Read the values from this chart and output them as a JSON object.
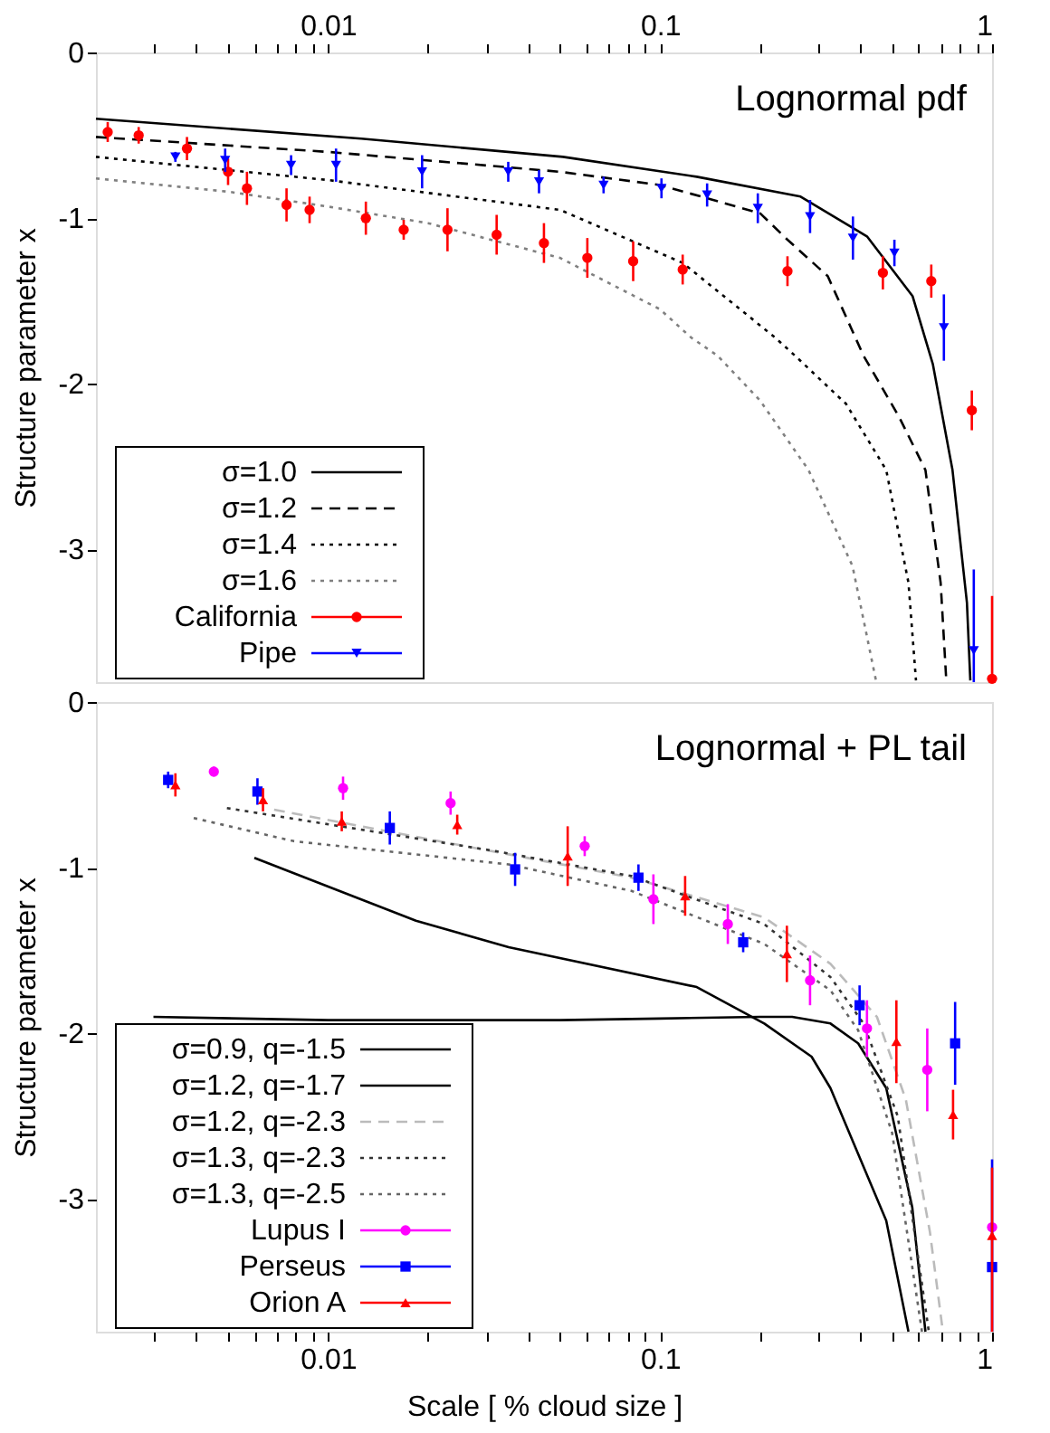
{
  "chart_data": [
    {
      "type": "line",
      "title": "Lognormal pdf",
      "ylabel": "Structure parameter x",
      "log": "x",
      "xlim": [
        0.002,
        1
      ],
      "xticks": [
        {
          "value": 0.003,
          "label": null
        },
        {
          "value": 0.004,
          "label": null
        },
        {
          "value": 0.005,
          "label": null
        },
        {
          "value": 0.006,
          "label": null
        },
        {
          "value": 0.007,
          "label": null
        },
        {
          "value": 0.008,
          "label": null
        },
        {
          "value": 0.009,
          "label": null
        },
        0.01,
        {
          "value": 0.02,
          "label": null
        },
        {
          "value": 0.03,
          "label": null
        },
        {
          "value": 0.04,
          "label": null
        },
        {
          "value": 0.05,
          "label": null
        },
        {
          "value": 0.06,
          "label": null
        },
        {
          "value": 0.07,
          "label": null
        },
        {
          "value": 0.08,
          "label": null
        },
        {
          "value": 0.09,
          "label": null
        },
        0.1,
        {
          "value": 0.2,
          "label": null
        },
        {
          "value": 0.3,
          "label": null
        },
        {
          "value": 0.4,
          "label": null
        },
        {
          "value": 0.5,
          "label": null
        },
        {
          "value": 0.6,
          "label": null
        },
        {
          "value": 0.7,
          "label": null
        },
        {
          "value": 0.8,
          "label": null
        },
        {
          "value": 0.9,
          "label": null
        },
        1
      ],
      "ylim": [
        -3.8,
        0
      ],
      "yticks": [
        0,
        -1,
        -2,
        -3
      ],
      "grid": false,
      "legend": "bottom left",
      "series": [
        {
          "name": "σ=1.0",
          "color": "#000000",
          "line_style": "solid",
          "marker": "none",
          "x": [
            0.002,
            0.0126,
            0.051,
            0.129,
            0.265,
            0.42,
            0.576,
            0.663,
            0.76,
            0.84,
            0.86
          ],
          "values": [
            -0.4,
            -0.52,
            -0.63,
            -0.75,
            -0.87,
            -1.11,
            -1.47,
            -1.88,
            -2.52,
            -3.32,
            -3.79
          ]
        },
        {
          "name": "σ=1.2",
          "color": "#000000",
          "line_style": "dashed",
          "marker": "none",
          "x": [
            0.002,
            0.01,
            0.05,
            0.1,
            0.2,
            0.242,
            0.32,
            0.41,
            0.525,
            0.63,
            0.7,
            0.728
          ],
          "values": [
            -0.51,
            -0.6,
            -0.72,
            -0.8,
            -0.97,
            -1.13,
            -1.35,
            -1.83,
            -2.2,
            -2.52,
            -3.2,
            -3.79
          ]
        },
        {
          "name": "σ=1.4",
          "color": "#000000",
          "line_style": "dotted",
          "marker": "none",
          "x": [
            0.002,
            0.01,
            0.05,
            0.117,
            0.222,
            0.255,
            0.363,
            0.48,
            0.56,
            0.59
          ],
          "values": [
            -0.63,
            -0.77,
            -0.95,
            -1.27,
            -1.72,
            -1.83,
            -2.12,
            -2.52,
            -3.2,
            -3.79
          ]
        },
        {
          "name": "σ=1.6",
          "color": "#808080",
          "line_style": "dotted",
          "marker": "none",
          "x": [
            0.002,
            0.005,
            0.01,
            0.02,
            0.05,
            0.1,
            0.124,
            0.149,
            0.2,
            0.28,
            0.38,
            0.447
          ],
          "values": [
            -0.76,
            -0.84,
            -0.93,
            -1.03,
            -1.24,
            -1.55,
            -1.72,
            -1.83,
            -2.1,
            -2.52,
            -3.1,
            -3.79
          ]
        },
        {
          "name": "California",
          "type": "scatter",
          "color": "#ff0000",
          "marker": "circle",
          "x": [
            0.00217,
            0.00269,
            0.00376,
            0.005,
            0.0057,
            0.0075,
            0.0088,
            0.013,
            0.0169,
            0.0229,
            0.0322,
            0.0447,
            0.0604,
            0.083,
            0.117,
            0.242,
            0.469,
            0.656,
            0.869,
            1.0
          ],
          "values": [
            -0.48,
            -0.5,
            -0.58,
            -0.72,
            -0.82,
            -0.92,
            -0.95,
            -1.0,
            -1.07,
            -1.07,
            -1.1,
            -1.15,
            -1.24,
            -1.26,
            -1.31,
            -1.32,
            -1.33,
            -1.38,
            -2.16,
            -3.78
          ],
          "errors": [
            0.06,
            0.05,
            0.07,
            0.08,
            0.1,
            0.1,
            0.08,
            0.1,
            0.06,
            0.13,
            0.12,
            0.12,
            0.12,
            0.12,
            0.09,
            0.09,
            0.1,
            0.1,
            0.12,
            [
              -3.8,
              -3.28
            ]
          ]
        },
        {
          "name": "Pipe",
          "type": "scatter",
          "color": "#0000ff",
          "marker": "triangle-down",
          "x": [
            0.00347,
            0.0049,
            0.00774,
            0.01057,
            0.0192,
            0.0349,
            0.0432,
            0.0676,
            0.101,
            0.1386,
            0.197,
            0.283,
            0.381,
            0.508,
            0.716,
            0.881
          ],
          "values": [
            -0.63,
            -0.65,
            -0.68,
            -0.68,
            -0.72,
            -0.72,
            -0.78,
            -0.8,
            -0.82,
            -0.86,
            -0.94,
            -0.99,
            -1.12,
            -1.21,
            -1.66,
            -3.61
          ],
          "errors": [
            0.03,
            0.07,
            0.06,
            0.1,
            0.1,
            0.06,
            0.07,
            0.05,
            0.06,
            0.07,
            0.09,
            0.1,
            0.13,
            0.08,
            0.2,
            [
              -3.8,
              -3.12
            ]
          ]
        }
      ]
    },
    {
      "type": "line",
      "title": "Lognormal + PL tail",
      "xlabel": "Scale [ % cloud size ]",
      "ylabel": "Structure parameter x",
      "log": "x",
      "xlim": [
        0.002,
        1
      ],
      "xticks": [
        {
          "value": 0.003,
          "label": null
        },
        {
          "value": 0.004,
          "label": null
        },
        {
          "value": 0.005,
          "label": null
        },
        {
          "value": 0.006,
          "label": null
        },
        {
          "value": 0.007,
          "label": null
        },
        {
          "value": 0.008,
          "label": null
        },
        {
          "value": 0.009,
          "label": null
        },
        0.01,
        {
          "value": 0.02,
          "label": null
        },
        {
          "value": 0.03,
          "label": null
        },
        {
          "value": 0.04,
          "label": null
        },
        {
          "value": 0.05,
          "label": null
        },
        {
          "value": 0.06,
          "label": null
        },
        {
          "value": 0.07,
          "label": null
        },
        {
          "value": 0.08,
          "label": null
        },
        {
          "value": 0.09,
          "label": null
        },
        0.1,
        {
          "value": 0.2,
          "label": null
        },
        {
          "value": 0.3,
          "label": null
        },
        {
          "value": 0.4,
          "label": null
        },
        {
          "value": 0.5,
          "label": null
        },
        {
          "value": 0.6,
          "label": null
        },
        {
          "value": 0.7,
          "label": null
        },
        {
          "value": 0.8,
          "label": null
        },
        {
          "value": 0.9,
          "label": null
        },
        1
      ],
      "ylim": [
        -3.8,
        0
      ],
      "yticks": [
        0,
        -1,
        -2,
        -3
      ],
      "grid": false,
      "legend": "bottom left",
      "series": [
        {
          "name": "σ=0.9, q=-1.5",
          "color": "#000000",
          "line_style": "solid",
          "marker": "none",
          "x": [
            0.00298,
            0.01,
            0.05,
            0.1,
            0.2,
            0.25,
            0.326,
            0.395,
            0.48,
            0.575,
            0.63
          ],
          "values": [
            -1.9,
            -1.92,
            -1.92,
            -1.91,
            -1.9,
            -1.9,
            -1.94,
            -2.06,
            -2.33,
            -3.05,
            -3.8
          ]
        },
        {
          "name": "σ=1.2, q=-1.7",
          "color": "#000000",
          "line_style": "solid",
          "marker": "none",
          "x": [
            0.006,
            0.0184,
            0.035,
            0.129,
            0.206,
            0.286,
            0.326,
            0.48,
            0.56
          ],
          "values": [
            -0.94,
            -1.32,
            -1.48,
            -1.72,
            -1.94,
            -2.14,
            -2.33,
            -3.13,
            -3.8
          ]
        },
        {
          "name": "σ=1.2, q=-2.3",
          "color": "#bbbbbb",
          "line_style": "dashed",
          "marker": "none",
          "x": [
            0.00688,
            0.082,
            0.206,
            0.326,
            0.45,
            0.55,
            0.65,
            0.711
          ],
          "values": [
            -0.65,
            -1.06,
            -1.3,
            -1.58,
            -1.9,
            -2.4,
            -3.2,
            -3.8
          ]
        },
        {
          "name": "σ=1.3, q=-2.3",
          "color": "#333333",
          "line_style": "dotted",
          "marker": "none",
          "x": [
            0.00496,
            0.032,
            0.082,
            0.206,
            0.326,
            0.41,
            0.52,
            0.645
          ],
          "values": [
            -0.64,
            -0.9,
            -1.05,
            -1.34,
            -1.66,
            -1.94,
            -2.5,
            -3.8
          ]
        },
        {
          "name": "σ=1.3, q=-2.5",
          "color": "#666666",
          "line_style": "dotted",
          "marker": "none",
          "x": [
            0.00394,
            0.0079,
            0.035,
            0.082,
            0.206,
            0.326,
            0.395,
            0.5,
            0.615
          ],
          "values": [
            -0.7,
            -0.84,
            -0.98,
            -1.14,
            -1.46,
            -1.74,
            -1.98,
            -2.6,
            -3.8
          ]
        },
        {
          "name": "Lupus I",
          "type": "scatter",
          "color": "#ff00ff",
          "marker": "circle",
          "x": [
            0.00453,
            0.0111,
            0.0234,
            0.0593,
            0.0955,
            0.16,
            0.283,
            0.42,
            0.638,
            1.0
          ],
          "values": [
            -0.42,
            -0.52,
            -0.61,
            -0.87,
            -1.19,
            -1.34,
            -1.68,
            -1.97,
            -2.22,
            -3.17
          ],
          "errors": [
            0.03,
            0.07,
            0.07,
            0.06,
            0.15,
            0.12,
            0.15,
            0.17,
            0.25,
            null
          ]
        },
        {
          "name": "Perseus",
          "type": "scatter",
          "color": "#0000ff",
          "marker": "square",
          "x": [
            0.0033,
            0.00613,
            0.01535,
            0.0366,
            0.0861,
            0.178,
            0.399,
            0.774,
            1.0
          ],
          "values": [
            -0.47,
            -0.54,
            -0.76,
            -1.01,
            -1.06,
            -1.45,
            -1.83,
            -2.06,
            -3.41
          ],
          "errors": [
            0.05,
            0.08,
            0.1,
            0.1,
            0.08,
            0.06,
            0.12,
            0.25,
            [
              -3.8,
              -2.76
            ]
          ]
        },
        {
          "name": "Orion A",
          "type": "scatter",
          "color": "#ff0000",
          "marker": "triangle",
          "x": [
            0.00347,
            0.00637,
            0.011,
            0.0245,
            0.0527,
            0.119,
            0.241,
            0.515,
            0.763,
            1.0
          ],
          "values": [
            -0.5,
            -0.59,
            -0.72,
            -0.74,
            -0.93,
            -1.17,
            -1.52,
            -2.05,
            -2.49,
            -3.22
          ],
          "errors": [
            0.07,
            0.07,
            0.06,
            0.06,
            0.18,
            0.12,
            0.17,
            0.25,
            0.15,
            [
              -3.8,
              -2.81
            ]
          ]
        }
      ]
    }
  ]
}
